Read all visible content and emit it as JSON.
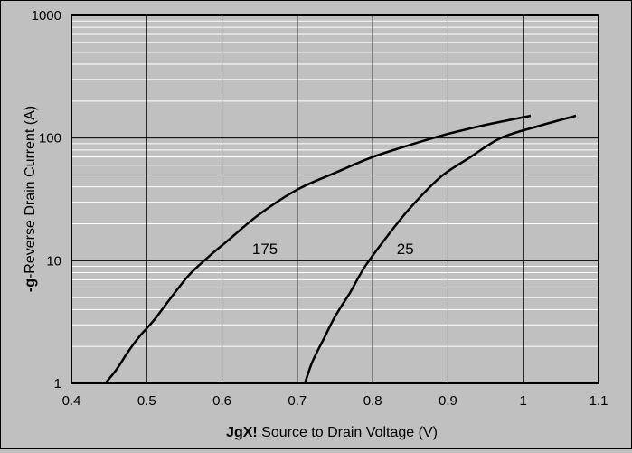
{
  "chart_data": {
    "type": "line",
    "title": "",
    "xlabel_prefix": "JgX!",
    "xlabel": " Source to Drain Voltage (V)",
    "ylabel_prefix": "-g",
    "ylabel": "-Reverse Drain Current  (A)",
    "xlim": [
      0.4,
      1.1
    ],
    "ylim": [
      1,
      1000
    ],
    "yscale": "log",
    "grid": true,
    "legend": "none",
    "x_ticks": [
      "0.4",
      "0.5",
      "0.6",
      "0.7",
      "0.8",
      "0.9",
      "1",
      "1.1"
    ],
    "y_ticks": [
      "1",
      "10",
      "100",
      "1000"
    ],
    "series": [
      {
        "name": "175",
        "x": [
          0.445,
          0.46,
          0.475,
          0.49,
          0.51,
          0.53,
          0.555,
          0.58,
          0.61,
          0.65,
          0.7,
          0.75,
          0.8,
          0.85,
          0.9,
          0.95,
          1.01
        ],
        "y": [
          1,
          1.3,
          1.8,
          2.4,
          3.3,
          4.8,
          7.5,
          10.5,
          15,
          24,
          38,
          52,
          70,
          88,
          108,
          128,
          152
        ]
      },
      {
        "name": "25",
        "x": [
          0.71,
          0.72,
          0.735,
          0.75,
          0.77,
          0.79,
          0.82,
          0.85,
          0.89,
          0.93,
          0.97,
          1.02,
          1.07
        ],
        "y": [
          1,
          1.5,
          2.3,
          3.5,
          5.5,
          9,
          16,
          27,
          48,
          70,
          100,
          125,
          152
        ]
      }
    ],
    "annotations": [
      {
        "text": "175",
        "x": 0.64,
        "y": 12.5
      },
      {
        "text": "25",
        "x": 0.832,
        "y": 12.5
      }
    ]
  },
  "colors": {
    "background": "#c0c0c0",
    "plot_area": "#c0c0c0",
    "major_grid": "#000000",
    "minor_grid": "#ffffff",
    "series": "#000000"
  }
}
